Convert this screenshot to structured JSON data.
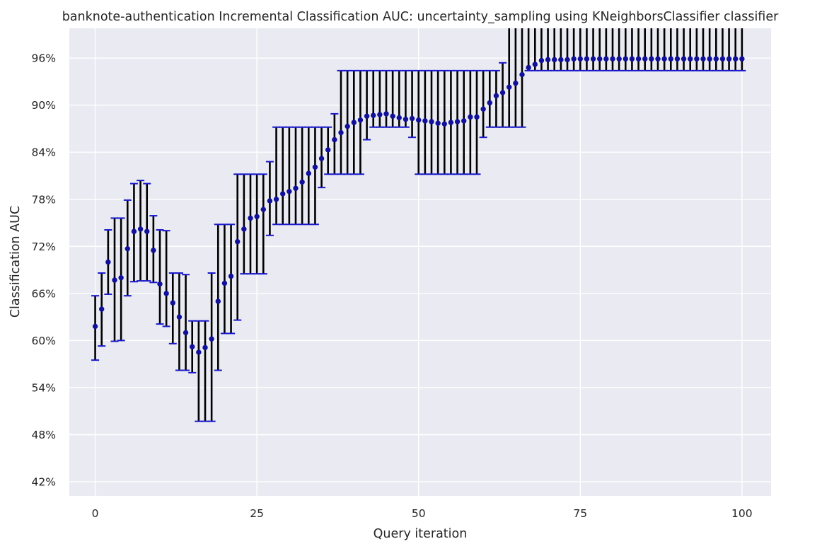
{
  "chart_data": {
    "type": "scatter",
    "title": "banknote-authentication Incremental Classification AUC: uncertainty_sampling using KNeighborsClassifier classifier",
    "xlabel": "Query iteration",
    "ylabel": "Classification AUC",
    "xlim": [
      -4,
      104.5
    ],
    "ylim": [
      40.2,
      99.8
    ],
    "xticks": [
      0,
      25,
      50,
      75,
      100
    ],
    "yticks": [
      42,
      48,
      54,
      60,
      66,
      72,
      78,
      84,
      90,
      96
    ],
    "ytick_format": "percent",
    "grid": true,
    "background": "#eaeaf2",
    "colors": {
      "point": "#10109a",
      "errorbar": "#000000",
      "cap": "#1818cc"
    },
    "series": [
      {
        "x": [
          0,
          1,
          2,
          3,
          4,
          5,
          6,
          7,
          8,
          9,
          10,
          11,
          12,
          13,
          14,
          15,
          16,
          17,
          18,
          19,
          20,
          21,
          22,
          23,
          24,
          25,
          26,
          27,
          28,
          29,
          30,
          31,
          32,
          33,
          34,
          35,
          36,
          37,
          38,
          39,
          40,
          41,
          42,
          43,
          44,
          45,
          46,
          47,
          48,
          49,
          50,
          51,
          52,
          53,
          54,
          55,
          56,
          57,
          58,
          59,
          60,
          61,
          62,
          63,
          64,
          65,
          66,
          67,
          68,
          69,
          70,
          71,
          72,
          73,
          74,
          75,
          76,
          77,
          78,
          79,
          80,
          81,
          82,
          83,
          84,
          85,
          86,
          87,
          88,
          89,
          90,
          91,
          92,
          93,
          94,
          95,
          96,
          97,
          98,
          99,
          100
        ],
        "y": [
          61.8,
          64.0,
          70.0,
          67.7,
          68.0,
          71.7,
          73.9,
          74.2,
          73.9,
          71.5,
          67.2,
          66.0,
          64.8,
          63.0,
          61.0,
          59.2,
          58.5,
          59.1,
          60.2,
          65.0,
          67.3,
          68.2,
          72.6,
          74.2,
          75.6,
          75.8,
          76.7,
          77.8,
          78.0,
          78.7,
          79.0,
          79.4,
          80.2,
          81.3,
          82.1,
          83.2,
          84.3,
          85.6,
          86.5,
          87.3,
          87.8,
          88.1,
          88.6,
          88.7,
          88.8,
          88.9,
          88.6,
          88.4,
          88.2,
          88.3,
          88.1,
          88.0,
          87.9,
          87.7,
          87.6,
          87.8,
          87.9,
          88.0,
          88.5,
          88.5,
          89.5,
          90.3,
          91.2,
          91.6,
          92.3,
          92.8,
          93.9,
          94.8,
          95.2,
          95.7,
          95.8,
          95.8,
          95.8,
          95.8,
          95.9,
          95.9,
          95.9,
          95.9,
          95.9,
          95.9,
          95.9,
          95.9,
          95.9,
          95.9,
          95.9,
          95.9,
          95.9,
          95.9,
          95.9,
          95.9,
          95.9,
          95.9,
          95.9,
          95.9,
          95.9,
          95.9,
          95.9,
          95.9,
          95.9,
          95.9,
          95.9
        ],
        "err_low": [
          57.5,
          59.3,
          65.9,
          59.9,
          60.0,
          65.7,
          67.5,
          67.6,
          67.6,
          67.4,
          62.1,
          61.8,
          59.6,
          56.2,
          56.2,
          55.9,
          49.7,
          49.7,
          49.7,
          56.2,
          60.9,
          60.9,
          62.6,
          68.5,
          68.5,
          68.5,
          68.5,
          73.4,
          74.8,
          74.8,
          74.8,
          74.8,
          74.8,
          74.8,
          74.8,
          79.5,
          81.2,
          81.2,
          81.2,
          81.2,
          81.2,
          81.2,
          85.6,
          87.2,
          87.2,
          87.2,
          87.2,
          87.2,
          87.2,
          85.9,
          81.2,
          81.2,
          81.2,
          81.2,
          81.2,
          81.2,
          81.2,
          81.2,
          81.2,
          81.2,
          85.9,
          87.2,
          87.2,
          87.2,
          87.2,
          87.2,
          87.2,
          94.4,
          94.4,
          94.4,
          94.4,
          94.4,
          94.4,
          94.4,
          94.4,
          94.4,
          94.4,
          94.4,
          94.4,
          94.4,
          94.4,
          94.4,
          94.4,
          94.4,
          94.4,
          94.4,
          94.4,
          94.4,
          94.4,
          94.4,
          94.4,
          94.4,
          94.4,
          94.4,
          94.4,
          94.4,
          94.4,
          94.4,
          94.4,
          94.4,
          94.4
        ],
        "err_high": [
          65.7,
          68.6,
          74.1,
          75.6,
          75.6,
          77.9,
          80.0,
          80.4,
          80.0,
          75.9,
          74.1,
          74.0,
          68.6,
          68.6,
          68.4,
          62.5,
          62.5,
          62.5,
          68.6,
          74.8,
          74.8,
          74.8,
          81.2,
          81.2,
          81.2,
          81.2,
          81.2,
          82.8,
          87.2,
          87.2,
          87.2,
          87.2,
          87.2,
          87.2,
          87.2,
          87.2,
          87.2,
          88.9,
          94.4,
          94.4,
          94.4,
          94.4,
          94.4,
          94.4,
          94.4,
          94.4,
          94.4,
          94.4,
          94.4,
          94.4,
          94.4,
          94.4,
          94.4,
          94.4,
          94.4,
          94.4,
          94.4,
          94.4,
          94.4,
          94.4,
          94.4,
          94.4,
          94.4,
          95.4,
          99.8,
          99.8,
          99.8,
          99.8,
          99.8,
          99.8,
          99.8,
          99.8,
          99.8,
          99.8,
          99.8,
          99.8,
          99.8,
          99.8,
          99.8,
          99.8,
          99.8,
          99.8,
          99.8,
          99.8,
          99.8,
          99.8,
          99.8,
          99.8,
          99.8,
          99.8,
          99.8,
          99.8,
          99.8,
          99.8,
          99.8,
          99.8,
          99.8,
          99.8,
          99.8,
          99.8,
          99.8,
          99.8
        ]
      }
    ]
  }
}
